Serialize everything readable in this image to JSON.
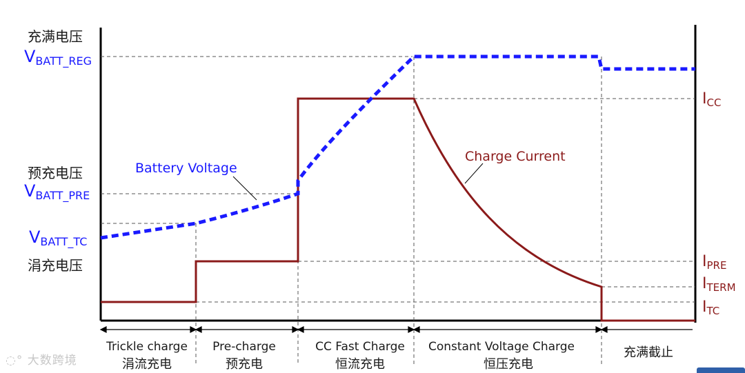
{
  "colors": {
    "voltage": "#1a1aff",
    "current": "#8b1a1a",
    "axis": "#000000",
    "guide": "#555555",
    "text": "#1a1a1a"
  },
  "left_labels": {
    "full_voltage_cn": "充满电压",
    "vbatt_reg_main": "V",
    "vbatt_reg_sub": "BATT_REG",
    "pre_voltage_cn": "预充电压",
    "vbatt_pre_main": "V",
    "vbatt_pre_sub": "BATT_PRE",
    "vbatt_tc_main": "V",
    "vbatt_tc_sub": "BATT_TC",
    "trickle_voltage_cn": "涓充电压"
  },
  "right_labels": {
    "icc_main": "I",
    "icc_sub": "CC",
    "ipre_main": "I",
    "ipre_sub": "PRE",
    "iterm_main": "I",
    "iterm_sub": "TERM",
    "itc_main": "I",
    "itc_sub": "TC"
  },
  "curve_labels": {
    "battery_voltage": "Battery Voltage",
    "charge_current": "Charge Current"
  },
  "phases": [
    {
      "en": "Trickle charge",
      "cn": "涓流充电"
    },
    {
      "en": "Pre-charge",
      "cn": "预充电"
    },
    {
      "en": "CC Fast Charge",
      "cn": "恒流充电"
    },
    {
      "en": "Constant Voltage Charge",
      "cn": "恒压充电"
    },
    {
      "en": "",
      "cn": "充满截止"
    }
  ],
  "watermark": "大数跨境"
}
